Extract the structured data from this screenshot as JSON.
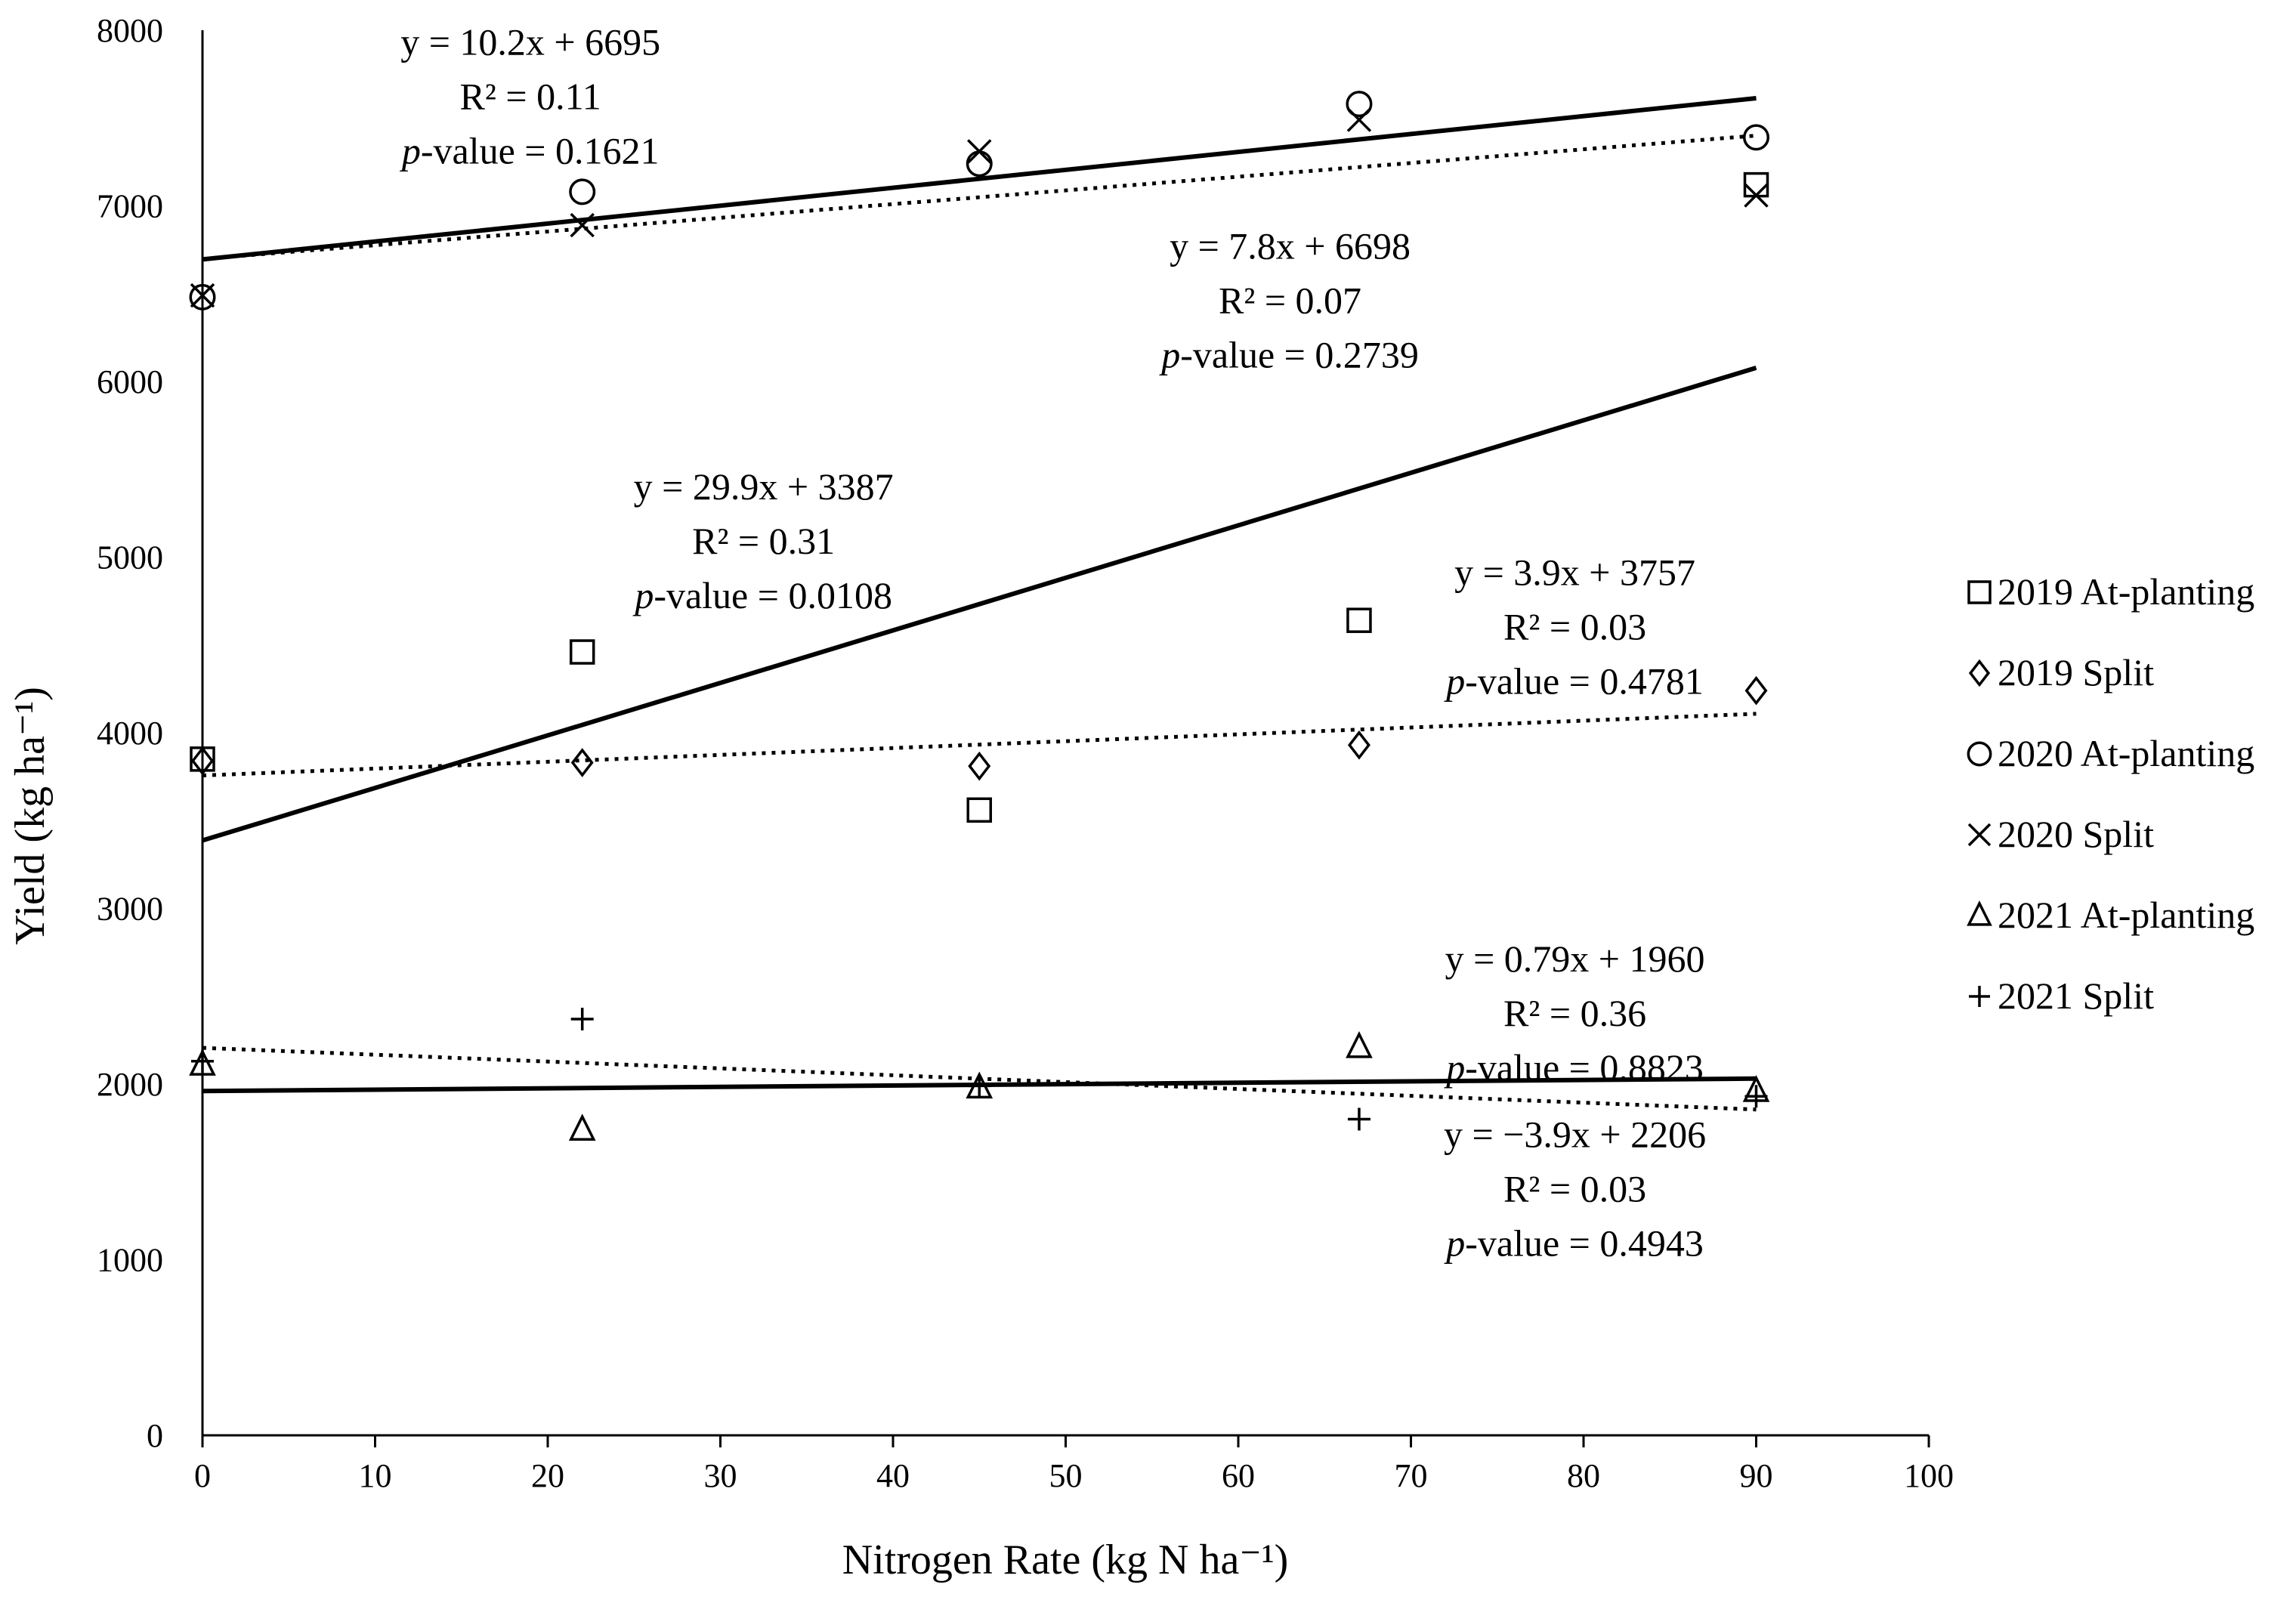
{
  "chart_data": {
    "type": "scatter",
    "xlabel": "Nitrogen Rate (kg N ha⁻¹)",
    "ylabel": "Yield (kg ha⁻¹)",
    "xlim": [
      0,
      100
    ],
    "ylim": [
      0,
      8000
    ],
    "x_ticks": [
      "0",
      "10",
      "20",
      "30",
      "40",
      "50",
      "60",
      "70",
      "80",
      "90",
      "100"
    ],
    "y_ticks": [
      "0",
      "1000",
      "2000",
      "3000",
      "4000",
      "5000",
      "6000",
      "7000",
      "8000"
    ],
    "grid": false,
    "legend_position": "right",
    "series": [
      {
        "name": "2019 At-planting",
        "marker": "square",
        "x": [
          0,
          22,
          45,
          67,
          90
        ],
        "y": [
          3850,
          4460,
          3560,
          4640,
          7120
        ]
      },
      {
        "name": "2019 Split",
        "marker": "diamond",
        "x": [
          0,
          22,
          45,
          67,
          90
        ],
        "y": [
          3840,
          3830,
          3810,
          3930,
          4240
        ]
      },
      {
        "name": "2020 At-planting",
        "marker": "circle",
        "x": [
          0,
          22,
          45,
          67,
          90
        ],
        "y": [
          6480,
          7080,
          7240,
          7580,
          7390
        ]
      },
      {
        "name": "2020 Split",
        "marker": "x",
        "x": [
          0,
          22,
          45,
          67,
          90
        ],
        "y": [
          6490,
          6890,
          7310,
          7490,
          7060
        ]
      },
      {
        "name": "2021 At-planting",
        "marker": "triangle",
        "x": [
          0,
          22,
          45,
          67,
          90
        ],
        "y": [
          2110,
          1740,
          1980,
          2210,
          1960
        ]
      },
      {
        "name": "2021 Split",
        "marker": "plus",
        "x": [
          0,
          22,
          45,
          67,
          90
        ],
        "y": [
          2130,
          2370,
          1990,
          1800,
          1930
        ]
      }
    ],
    "trendlines": [
      {
        "style": "solid",
        "slope": 10.2,
        "intercept": 6695,
        "x_range": [
          0,
          90
        ]
      },
      {
        "style": "dotted",
        "slope": 7.8,
        "intercept": 6698,
        "x_range": [
          0,
          90
        ]
      },
      {
        "style": "solid",
        "slope": 29.9,
        "intercept": 3387,
        "x_range": [
          0,
          90
        ]
      },
      {
        "style": "dotted",
        "slope": 3.9,
        "intercept": 3757,
        "x_range": [
          0,
          90
        ]
      },
      {
        "style": "solid",
        "slope": 0.79,
        "intercept": 1960,
        "x_range": [
          0,
          90
        ]
      },
      {
        "style": "dotted",
        "slope": -3.9,
        "intercept": 2206,
        "x_range": [
          0,
          90
        ]
      }
    ],
    "annotations": [
      {
        "equation": "y = 10.2x + 6695",
        "r2": "R² = 0.11",
        "p_label": "p",
        "p_value": "-value = 0.1621",
        "anchor_x": 19,
        "anchor_y": 7860
      },
      {
        "equation": "y = 7.8x + 6698",
        "r2": "R² = 0.07",
        "p_label": "p",
        "p_value": "-value = 0.2739",
        "anchor_x": 63,
        "anchor_y": 6700
      },
      {
        "equation": "y = 29.9x + 3387",
        "r2": "R² = 0.31",
        "p_label": "p",
        "p_value": "-value = 0.0108",
        "anchor_x": 32.5,
        "anchor_y": 5330
      },
      {
        "equation": "y = 3.9x + 3757",
        "r2": "R² = 0.03",
        "p_label": "p",
        "p_value": "-value = 0.4781",
        "anchor_x": 79.5,
        "anchor_y": 4840
      },
      {
        "equation": "y = 0.79x + 1960",
        "r2": "R² = 0.36",
        "p_label": "p",
        "p_value": "-value = 0.8823",
        "anchor_x": 79.5,
        "anchor_y": 2640
      },
      {
        "equation": "y = −3.9x + 2206",
        "r2": "R² = 0.03",
        "p_label": "p",
        "p_value": "-value = 0.4943",
        "anchor_x": 79.5,
        "anchor_y": 1640
      }
    ]
  }
}
